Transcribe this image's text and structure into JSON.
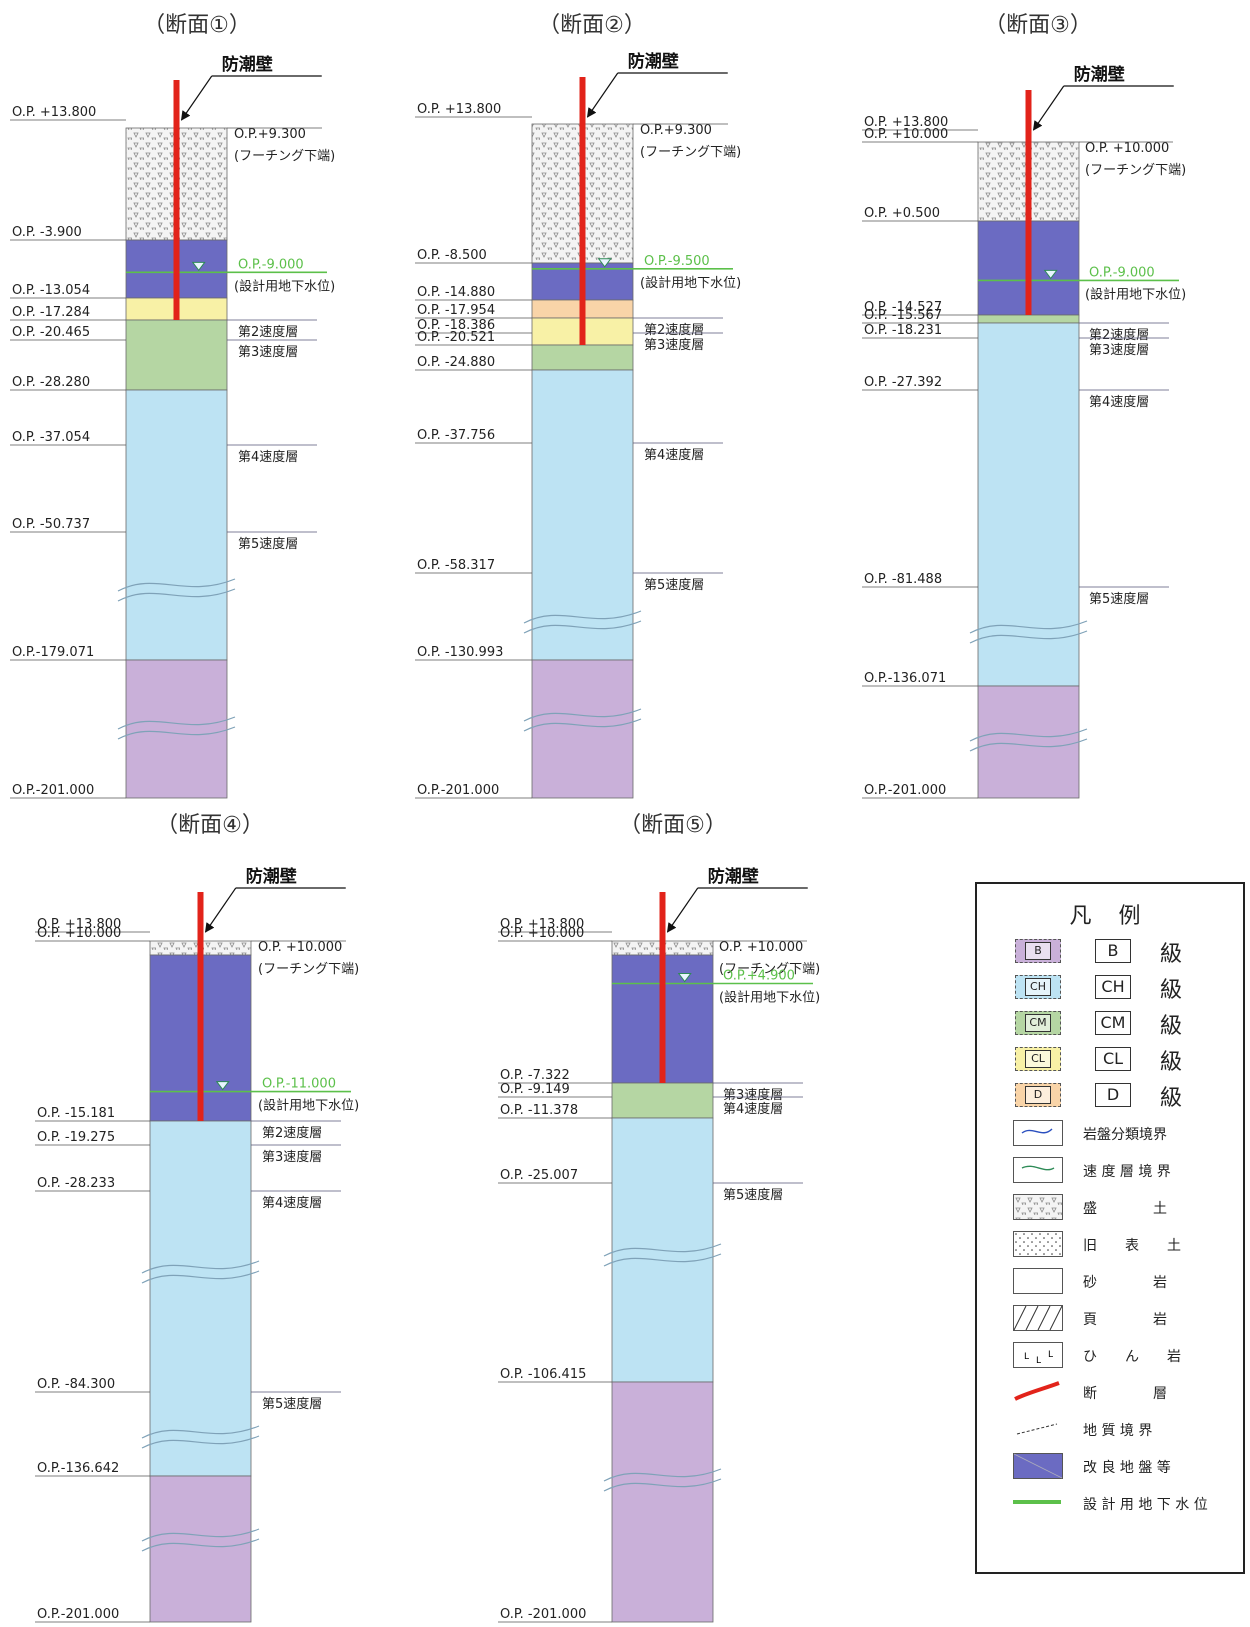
{
  "title_label": "防潮壁",
  "sections": [
    {
      "name": "（断面①）",
      "fill_top": 9.3,
      "bottom": -201.0,
      "footing": {
        "text": "O.P.+9.300",
        "note": "(フーチング下端)"
      },
      "groundwater": {
        "text": "O.P.-9.000",
        "note": "(設計用地下水位)",
        "value": -9.0
      },
      "wall_bottom": -17.284,
      "layers": [
        {
          "cls": "fill",
          "top": 9.3,
          "bottom": -3.9
        },
        {
          "cls": "improved",
          "top": -3.9,
          "bottom": -13.054
        },
        {
          "cls": "CL",
          "top": -13.054,
          "bottom": -17.284
        },
        {
          "cls": "CM",
          "top": -17.284,
          "bottom": -28.28
        },
        {
          "cls": "CH",
          "top": -28.28,
          "bottom": -179.071
        },
        {
          "cls": "B",
          "top": -179.071,
          "bottom": -201.0
        }
      ],
      "elev_labels": [
        {
          "text": "O.P. +13.800",
          "value": 13.8
        },
        {
          "text": "O.P. -3.900",
          "value": -3.9
        },
        {
          "text": "O.P. -13.054",
          "value": -13.054
        },
        {
          "text": "O.P. -17.284",
          "value": -17.284
        },
        {
          "text": "O.P. -20.465",
          "value": -20.465
        },
        {
          "text": "O.P. -28.280",
          "value": -28.28
        },
        {
          "text": "O.P. -37.054",
          "value": -37.054
        },
        {
          "text": "O.P. -50.737",
          "value": -50.737
        },
        {
          "text": "O.P.-179.071",
          "value": -179.071
        },
        {
          "text": "O.P.-201.000",
          "value": -201.0
        }
      ],
      "speed_labels": [
        {
          "text": "第2速度層",
          "value": -17.284
        },
        {
          "text": "第3速度層",
          "value": -20.465
        },
        {
          "text": "第4速度層",
          "value": -37.054
        },
        {
          "text": "第5速度層",
          "value": -50.737
        }
      ]
    },
    {
      "name": "（断面②）",
      "fill_top": 9.3,
      "bottom": -201.0,
      "footing": {
        "text": "O.P.+9.300",
        "note": "(フーチング下端)"
      },
      "groundwater": {
        "text": "O.P.-9.500",
        "note": "(設計用地下水位)",
        "value": -9.5
      },
      "wall_bottom": -20.521,
      "layers": [
        {
          "cls": "fill",
          "top": 9.3,
          "bottom": -8.5
        },
        {
          "cls": "improved",
          "top": -8.5,
          "bottom": -14.88
        },
        {
          "cls": "D",
          "top": -14.88,
          "bottom": -17.954
        },
        {
          "cls": "CL",
          "top": -17.954,
          "bottom": -20.521
        },
        {
          "cls": "CM",
          "top": -20.521,
          "bottom": -24.88
        },
        {
          "cls": "CH",
          "top": -24.88,
          "bottom": -130.993
        },
        {
          "cls": "B",
          "top": -130.993,
          "bottom": -201.0
        }
      ],
      "elev_labels": [
        {
          "text": "O.P. +13.800",
          "value": 13.8
        },
        {
          "text": "O.P. -8.500",
          "value": -8.5
        },
        {
          "text": "O.P. -14.880",
          "value": -14.88
        },
        {
          "text": "O.P. -17.954",
          "value": -17.954
        },
        {
          "text": "O.P. -18.386",
          "value": -18.386
        },
        {
          "text": "O.P. -20.521",
          "value": -20.521
        },
        {
          "text": "O.P. -24.880",
          "value": -24.88
        },
        {
          "text": "O.P. -37.756",
          "value": -37.756
        },
        {
          "text": "O.P. -58.317",
          "value": -58.317
        },
        {
          "text": "O.P. -130.993",
          "value": -130.993
        },
        {
          "text": "O.P.-201.000",
          "value": -201.0
        }
      ],
      "speed_labels": [
        {
          "text": "第2速度層",
          "value": -17.954
        },
        {
          "text": "第3速度層",
          "value": -18.386
        },
        {
          "text": "第4速度層",
          "value": -37.756
        },
        {
          "text": "第5速度層",
          "value": -58.317
        }
      ]
    },
    {
      "name": "（断面③）",
      "fill_top": 10.0,
      "bottom": -201.0,
      "footing": {
        "text": "O.P. +10.000",
        "note": "(フーチング下端)"
      },
      "groundwater": {
        "text": "O.P.-9.000",
        "note": "(設計用地下水位)",
        "value": -9.0
      },
      "wall_bottom": -14.527,
      "layers": [
        {
          "cls": "fill",
          "top": 10.0,
          "bottom": 0.5
        },
        {
          "cls": "improved",
          "top": 0.5,
          "bottom": -14.527
        },
        {
          "cls": "CM",
          "top": -14.527,
          "bottom": -15.567
        },
        {
          "cls": "CH",
          "top": -15.567,
          "bottom": -136.071
        },
        {
          "cls": "B",
          "top": -136.071,
          "bottom": -201.0
        }
      ],
      "elev_labels": [
        {
          "text": "O.P. +13.800",
          "value": 13.8
        },
        {
          "text": "O.P. +10.000",
          "value": 10.0
        },
        {
          "text": "O.P. +0.500",
          "value": 0.5
        },
        {
          "text": "O.P. -14.527",
          "value": -14.527
        },
        {
          "text": "O.P. -15.567",
          "value": -15.567
        },
        {
          "text": "O.P. -18.231",
          "value": -18.231
        },
        {
          "text": "O.P. -27.392",
          "value": -27.392
        },
        {
          "text": "O.P. -81.488",
          "value": -81.488
        },
        {
          "text": "O.P.-136.071",
          "value": -136.071
        },
        {
          "text": "O.P.-201.000",
          "value": -201.0
        }
      ],
      "speed_labels": [
        {
          "text": "第2速度層",
          "value": -15.567
        },
        {
          "text": "第3速度層",
          "value": -18.231
        },
        {
          "text": "第4速度層",
          "value": -27.392
        },
        {
          "text": "第5速度層",
          "value": -81.488
        }
      ]
    },
    {
      "name": "（断面④）",
      "fill_top": 10.0,
      "bottom": -201.0,
      "footing": {
        "text": "O.P. +10.000",
        "note": "(フーチング下端)"
      },
      "groundwater": {
        "text": "O.P.-11.000",
        "note": "(設計用地下水位)",
        "value": -11.0
      },
      "wall_bottom": -15.181,
      "layers": [
        {
          "cls": "fill",
          "top": 10.0,
          "bottom": 8.4
        },
        {
          "cls": "improved",
          "top": 8.4,
          "bottom": -15.181
        },
        {
          "cls": "CH",
          "top": -15.181,
          "bottom": -136.642
        },
        {
          "cls": "B",
          "top": -136.642,
          "bottom": -201.0
        }
      ],
      "elev_labels": [
        {
          "text": "O.P. +13.800",
          "value": 13.8
        },
        {
          "text": "O.P. +10.000",
          "value": 10.0
        },
        {
          "text": "O.P. -15.181",
          "value": -15.181
        },
        {
          "text": "O.P. -19.275",
          "value": -19.275
        },
        {
          "text": "O.P. -28.233",
          "value": -28.233
        },
        {
          "text": "O.P. -84.300",
          "value": -84.3
        },
        {
          "text": "O.P.-136.642",
          "value": -136.642
        },
        {
          "text": "O.P.-201.000",
          "value": -201.0
        }
      ],
      "speed_labels": [
        {
          "text": "第2速度層",
          "value": -15.181
        },
        {
          "text": "第3速度層",
          "value": -19.275
        },
        {
          "text": "第4速度層",
          "value": -28.233
        },
        {
          "text": "第5速度層",
          "value": -84.3
        }
      ]
    },
    {
      "name": "（断面⑤）",
      "fill_top": 10.0,
      "bottom": -201.0,
      "footing": {
        "text": "O.P. +10.000",
        "note": "(フーチング下端)"
      },
      "groundwater": {
        "text": "O.P.+4.900",
        "note": "(設計用地下水位)",
        "value": 4.9
      },
      "wall_bottom": -7.322,
      "layers": [
        {
          "cls": "fill",
          "top": 10.0,
          "bottom": 8.4
        },
        {
          "cls": "improved",
          "top": 8.4,
          "bottom": -7.322
        },
        {
          "cls": "CM",
          "top": -7.322,
          "bottom": -11.378
        },
        {
          "cls": "CH",
          "top": -11.378,
          "bottom": -106.415
        },
        {
          "cls": "B",
          "top": -106.415,
          "bottom": -201.0
        }
      ],
      "elev_labels": [
        {
          "text": "O.P. +13.800",
          "value": 13.8
        },
        {
          "text": "O.P. +10.000",
          "value": 10.0
        },
        {
          "text": "O.P. -7.322",
          "value": -7.322
        },
        {
          "text": "O.P. -9.149",
          "value": -9.149
        },
        {
          "text": "O.P. -11.378",
          "value": -11.378
        },
        {
          "text": "O.P. -25.007",
          "value": -25.007
        },
        {
          "text": "O.P. -106.415",
          "value": -106.415
        },
        {
          "text": "O.P. -201.000",
          "value": -201.0
        }
      ],
      "speed_labels": [
        {
          "text": "第3速度層",
          "value": -7.322
        },
        {
          "text": "第4速度層",
          "value": -9.149
        },
        {
          "text": "第5速度層",
          "value": -25.007
        }
      ]
    }
  ],
  "colors": {
    "fill": "#f4f4f4",
    "improved": "#6b6bc2",
    "D": "#f9d4a8",
    "CL": "#f8f1a6",
    "CM": "#b5d6a3",
    "CH": "#bde3f3",
    "B": "#c9b0d9",
    "wall": "#e2231a",
    "groundwater": "#5cc04a"
  },
  "legend": {
    "title": "凡 例",
    "classes": [
      {
        "box": "B",
        "label": "B",
        "suffix": "級",
        "color": "#c9b0d9"
      },
      {
        "box": "CH",
        "label": "CH",
        "suffix": "級",
        "color": "#bde3f3"
      },
      {
        "box": "CM",
        "label": "CM",
        "suffix": "級",
        "color": "#b5d6a3"
      },
      {
        "box": "CL",
        "label": "CL",
        "suffix": "級",
        "color": "#f8f1a6"
      },
      {
        "box": "D",
        "label": "D",
        "suffix": "級",
        "color": "#f9d4a8"
      }
    ],
    "items": [
      {
        "icon": "rock-class-boundary-icon",
        "label": "岩盤分類境界"
      },
      {
        "icon": "velocity-layer-boundary-icon",
        "label": "速 度 層 境 界"
      },
      {
        "icon": "embankment-icon",
        "label": "盛　　　　土"
      },
      {
        "icon": "old-topsoil-icon",
        "label": "旧　　表　　土"
      },
      {
        "icon": "sandstone-icon",
        "label": "砂　　　　岩"
      },
      {
        "icon": "shale-icon",
        "label": "頁　　　　岩"
      },
      {
        "icon": "porphyrite-icon",
        "label": "ひ　　ん　　岩"
      },
      {
        "icon": "fault-icon",
        "label": "断　　　　層"
      },
      {
        "icon": "geologic-boundary-icon",
        "label": "地 質 境 界"
      },
      {
        "icon": "improved-ground-icon",
        "label": "改 良 地 盤 等"
      },
      {
        "icon": "design-groundwater-icon",
        "label": "設 計 用 地 下 水 位"
      }
    ]
  }
}
